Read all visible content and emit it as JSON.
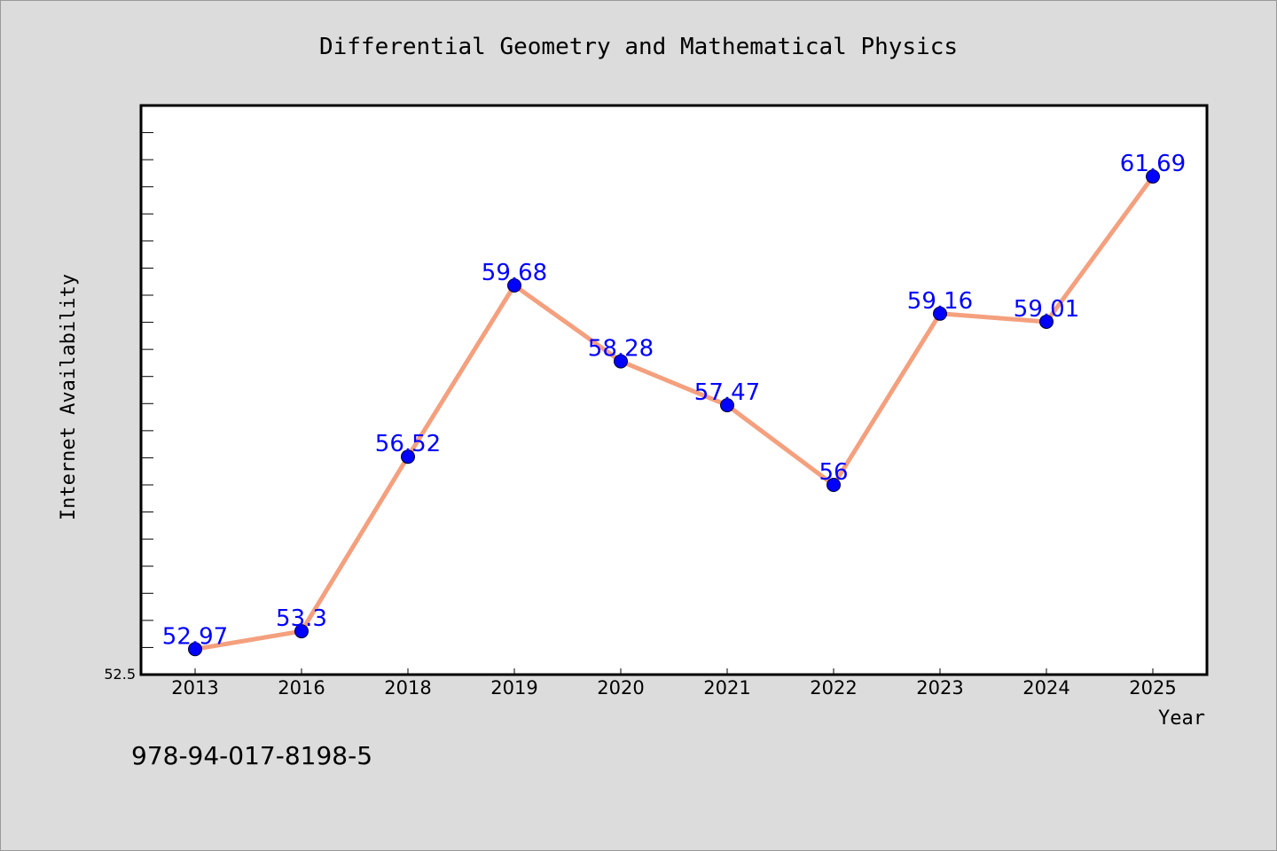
{
  "chart_data": {
    "type": "line",
    "title": "Differential Geometry and Mathematical Physics",
    "xlabel": "Year",
    "ylabel": "Internet Availability",
    "categories": [
      "2013",
      "2016",
      "2018",
      "2019",
      "2020",
      "2021",
      "2022",
      "2023",
      "2024",
      "2025"
    ],
    "values": [
      52.97,
      53.3,
      56.52,
      59.68,
      58.28,
      57.47,
      56,
      59.16,
      59.01,
      61.69
    ],
    "data_labels": [
      "52.97",
      "53.3",
      "56.52",
      "59.68",
      "58.28",
      "57.47",
      "56",
      "59.16",
      "59.01",
      "61.69"
    ],
    "ytick_labels": [
      "52.5"
    ],
    "ylim": [
      52.5,
      63
    ],
    "grid": false,
    "line_color": "#f4a07e",
    "marker_color": "#0000ff",
    "label_color": "#0000ff"
  },
  "footer_text": "978-94-017-8198-5"
}
